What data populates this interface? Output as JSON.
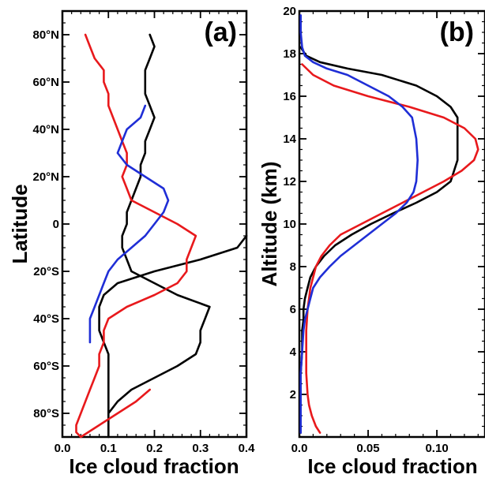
{
  "chart_data": [
    {
      "panel_label": "(a)",
      "type": "line",
      "xlabel": "Ice cloud fraction",
      "ylabel": "Latitude",
      "xlim": [
        0.0,
        0.4
      ],
      "ylim": [
        -90,
        90
      ],
      "x_tick_labels": [
        "0.0",
        "0.1",
        "0.2",
        "0.3",
        "0.4"
      ],
      "y_tick_labels": [
        "80°N",
        "60°N",
        "40°N",
        "20°N",
        "0",
        "20°S",
        "40°S",
        "60°S",
        "80°S"
      ],
      "colors": {
        "black": "#000000",
        "red": "#e8191c",
        "blue": "#1f2ed6"
      },
      "series": [
        {
          "color": "black",
          "x": [
            0.19,
            0.2,
            0.19,
            0.18,
            0.18,
            0.18,
            0.19,
            0.2,
            0.19,
            0.18,
            0.18,
            0.17,
            0.17,
            0.16,
            0.15,
            0.14,
            0.14,
            0.13,
            0.13,
            0.14,
            0.15,
            0.2,
            0.25,
            0.32,
            0.31,
            0.3,
            0.3,
            0.29,
            0.25,
            0.2,
            0.15,
            0.12,
            0.1,
            0.1,
            0.1,
            0.1,
            0.1,
            0.1,
            0.1,
            0.09,
            0.08,
            0.08,
            0.08,
            0.09,
            0.12,
            0.2,
            0.3,
            0.38,
            0.4
          ],
          "y": [
            80,
            75,
            70,
            65,
            60,
            55,
            50,
            45,
            40,
            35,
            30,
            25,
            20,
            15,
            10,
            5,
            0,
            -5,
            -10,
            -15,
            -20,
            -25,
            -30,
            -35,
            -40,
            -45,
            -50,
            -55,
            -60,
            -65,
            -70,
            -75,
            -80,
            -85,
            -88,
            -90,
            -70,
            -60,
            -55,
            -50,
            -45,
            -40,
            -35,
            -30,
            -25,
            -20,
            -15,
            -10,
            -5
          ]
        },
        {
          "color": "red",
          "x": [
            0.05,
            0.06,
            0.07,
            0.09,
            0.09,
            0.1,
            0.1,
            0.11,
            0.12,
            0.13,
            0.14,
            0.14,
            0.13,
            0.14,
            0.15,
            0.2,
            0.25,
            0.29,
            0.28,
            0.27,
            0.27,
            0.25,
            0.2,
            0.14,
            0.1,
            0.09,
            0.09,
            0.08,
            0.08,
            0.07,
            0.06,
            0.05,
            0.04,
            0.03,
            0.03,
            0.04,
            0.08,
            0.12,
            0.16,
            0.19
          ],
          "y": [
            80,
            75,
            70,
            65,
            60,
            55,
            50,
            45,
            40,
            35,
            30,
            25,
            20,
            15,
            10,
            5,
            0,
            -5,
            -10,
            -15,
            -20,
            -25,
            -30,
            -35,
            -40,
            -45,
            -50,
            -55,
            -60,
            -65,
            -70,
            -75,
            -80,
            -85,
            -88,
            -90,
            -85,
            -80,
            -75,
            -70
          ]
        },
        {
          "color": "blue",
          "x": [
            0.18,
            0.17,
            0.14,
            0.13,
            0.12,
            0.14,
            0.18,
            0.22,
            0.23,
            0.22,
            0.2,
            0.18,
            0.15,
            0.12,
            0.1,
            0.09,
            0.08,
            0.07,
            0.06,
            0.06,
            0.06
          ],
          "y": [
            50,
            45,
            40,
            35,
            30,
            25,
            20,
            15,
            10,
            5,
            0,
            -5,
            -10,
            -15,
            -20,
            -25,
            -30,
            -35,
            -40,
            -45,
            -50
          ]
        }
      ]
    },
    {
      "panel_label": "(b)",
      "type": "line",
      "xlabel": "Ice cloud fraction",
      "ylabel": "Altitude (km)",
      "xlim": [
        0.0,
        0.135
      ],
      "ylim": [
        0,
        20
      ],
      "x_tick_labels": [
        "0.0",
        "0.05",
        "0.10"
      ],
      "y_tick_labels": [
        "2",
        "4",
        "6",
        "8",
        "10",
        "12",
        "14",
        "16",
        "18",
        "20"
      ],
      "colors": {
        "black": "#000000",
        "red": "#e8191c",
        "blue": "#1f2ed6"
      },
      "series": [
        {
          "color": "black",
          "x": [
            0.001,
            0.001,
            0.001,
            0.001,
            0.002,
            0.002,
            0.003,
            0.003,
            0.004,
            0.006,
            0.008,
            0.012,
            0.018,
            0.026,
            0.038,
            0.052,
            0.068,
            0.085,
            0.1,
            0.11,
            0.115,
            0.115,
            0.11,
            0.1,
            0.085,
            0.06,
            0.035,
            0.015,
            0.005,
            0.001
          ],
          "y": [
            0.2,
            1,
            2,
            3,
            4,
            5,
            5.5,
            6,
            6.5,
            7,
            7.5,
            8,
            8.5,
            9,
            9.5,
            10,
            10.5,
            11,
            11.5,
            12,
            13,
            15,
            15.5,
            16,
            16.5,
            17,
            17.3,
            17.6,
            17.9,
            18.3
          ]
        },
        {
          "color": "red",
          "x": [
            0.015,
            0.012,
            0.009,
            0.007,
            0.006,
            0.005,
            0.005,
            0.005,
            0.006,
            0.007,
            0.008,
            0.01,
            0.012,
            0.016,
            0.022,
            0.03,
            0.045,
            0.06,
            0.075,
            0.09,
            0.105,
            0.118,
            0.127,
            0.13,
            0.128,
            0.12,
            0.105,
            0.08,
            0.05,
            0.025,
            0.01,
            0.002
          ],
          "y": [
            0.2,
            0.5,
            1,
            1.5,
            2,
            3,
            4,
            5,
            6,
            6.5,
            7,
            7.5,
            8,
            8.5,
            9,
            9.5,
            10,
            10.5,
            11,
            11.5,
            12,
            12.5,
            13,
            13.5,
            14,
            14.5,
            15,
            15.5,
            16,
            16.5,
            17,
            17.5
          ]
        },
        {
          "color": "blue",
          "x": [
            0.001,
            0.001,
            0.001,
            0.001,
            0.002,
            0.003,
            0.004,
            0.006,
            0.01,
            0.015,
            0.022,
            0.03,
            0.04,
            0.05,
            0.06,
            0.07,
            0.078,
            0.083,
            0.085,
            0.086,
            0.085,
            0.082,
            0.075,
            0.065,
            0.05,
            0.035,
            0.02,
            0.01,
            0.004,
            0.002,
            0.001,
            0.001
          ],
          "y": [
            0.2,
            1,
            2,
            3,
            4,
            5,
            5.5,
            6,
            7,
            7.5,
            8,
            8.5,
            9,
            9.5,
            10,
            10.5,
            11,
            11.5,
            12,
            13,
            14,
            15,
            15.5,
            16,
            16.5,
            17,
            17.3,
            17.6,
            17.9,
            18.3,
            19,
            19.8
          ]
        }
      ]
    }
  ]
}
